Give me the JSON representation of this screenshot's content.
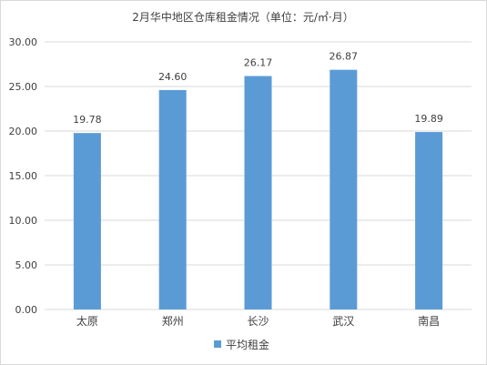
{
  "chart_data": {
    "type": "bar",
    "title": "2月华中地区仓库租金情况（单位：元/㎡·月）",
    "categories": [
      "太原",
      "郑州",
      "长沙",
      "武汉",
      "南昌"
    ],
    "series": [
      {
        "name": "平均租金",
        "values": [
          19.78,
          24.6,
          26.17,
          26.87,
          19.89
        ]
      }
    ],
    "data_labels": [
      "19.78",
      "24.60",
      "26.17",
      "26.87",
      "19.89"
    ],
    "y_ticks": [
      "0.00",
      "5.00",
      "10.00",
      "15.00",
      "20.00",
      "25.00",
      "30.00"
    ],
    "ylim": [
      0,
      30
    ],
    "grid": true,
    "legend_position": "bottom",
    "bar_color": "#5b9bd5",
    "grid_color": "#d9d9d9"
  }
}
